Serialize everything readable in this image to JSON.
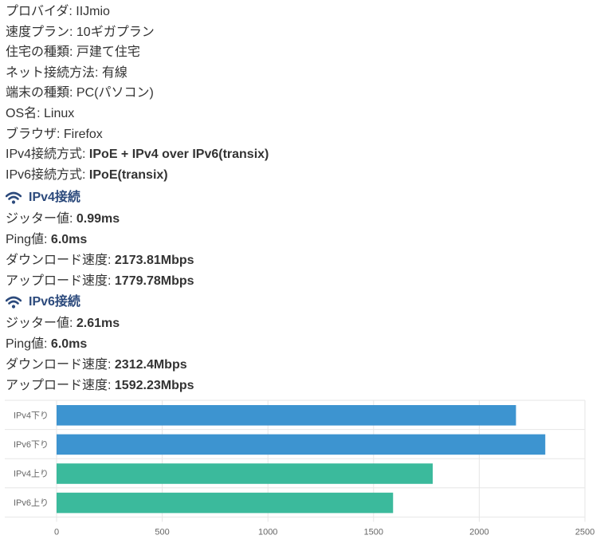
{
  "info": [
    {
      "label": "プロバイダ: ",
      "value": "IIJmio",
      "bold": false
    },
    {
      "label": "速度プラン: ",
      "value": "10ギガプラン",
      "bold": false
    },
    {
      "label": "住宅の種類: ",
      "value": "戸建て住宅",
      "bold": false
    },
    {
      "label": "ネット接続方法: ",
      "value": "有線",
      "bold": false
    },
    {
      "label": "端末の種類: ",
      "value": "PC(パソコン)",
      "bold": false
    },
    {
      "label": "OS名: ",
      "value": "Linux",
      "bold": false
    },
    {
      "label": "ブラウザ: ",
      "value": "Firefox",
      "bold": false
    },
    {
      "label": "IPv4接続方式: ",
      "value": "IPoE + IPv4 over IPv6(transix)",
      "bold": true
    },
    {
      "label": "IPv6接続方式: ",
      "value": "IPoE(transix)",
      "bold": true
    }
  ],
  "ipv4": {
    "heading": "IPv4接続",
    "icon": "wifi-icon",
    "rows": [
      {
        "label": "ジッター値: ",
        "value": "0.99ms"
      },
      {
        "label": "Ping値: ",
        "value": "6.0ms"
      },
      {
        "label": "ダウンロード速度: ",
        "value": "2173.81Mbps"
      },
      {
        "label": "アップロード速度: ",
        "value": "1779.78Mbps"
      }
    ]
  },
  "ipv6": {
    "heading": "IPv6接続",
    "icon": "wifi-icon",
    "rows": [
      {
        "label": "ジッター値: ",
        "value": "2.61ms"
      },
      {
        "label": "Ping値: ",
        "value": "6.0ms"
      },
      {
        "label": "ダウンロード速度: ",
        "value": "2312.4Mbps"
      },
      {
        "label": "アップロード速度: ",
        "value": "1592.23Mbps"
      }
    ]
  },
  "colors": {
    "heading": "#2c4a7c",
    "download_bar": "#3d94d0",
    "upload_bar": "#3bba9c",
    "grid": "#e6e6e6",
    "axis_text": "#666666"
  },
  "chart_data": {
    "type": "bar",
    "orientation": "horizontal",
    "categories": [
      "IPv4下り",
      "IPv6下り",
      "IPv4上り",
      "IPv6上り"
    ],
    "values": [
      2173.81,
      2312.4,
      1779.78,
      1592.23
    ],
    "bar_colors": [
      "#3d94d0",
      "#3d94d0",
      "#3bba9c",
      "#3bba9c"
    ],
    "xlim": [
      0,
      2500
    ],
    "xticks": [
      0,
      500,
      1000,
      1500,
      2000,
      2500
    ],
    "title": "",
    "xlabel": "",
    "ylabel": "",
    "grid": true,
    "legend": "none"
  }
}
